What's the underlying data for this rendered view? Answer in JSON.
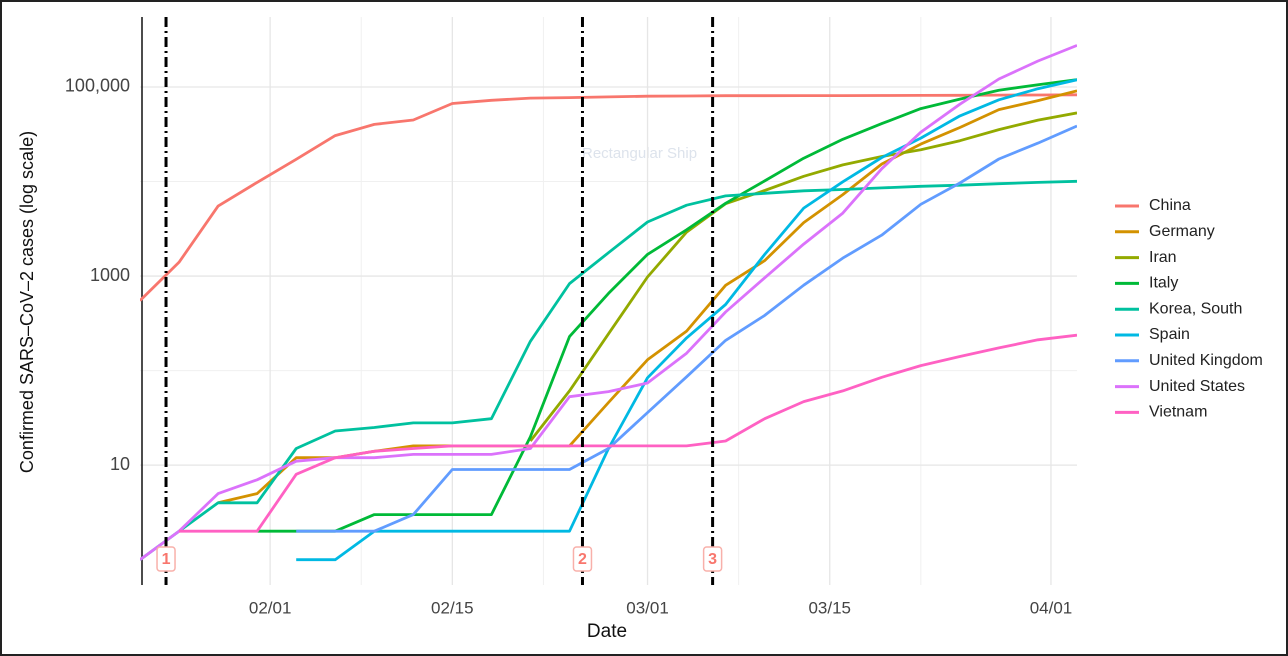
{
  "chart_data": {
    "type": "line",
    "watermark": "Rectangular Ship",
    "xlabel": "Date",
    "ylabel": "Confirmed SARS–CoV–2 cases (log scale)",
    "log_y": true,
    "grid": true,
    "legend": "right",
    "x": [
      "01/22",
      "01/25",
      "01/28",
      "01/31",
      "02/03",
      "02/06",
      "02/09",
      "02/12",
      "02/15",
      "02/18",
      "02/21",
      "02/24",
      "02/27",
      "03/01",
      "03/04",
      "03/07",
      "03/10",
      "03/13",
      "03/16",
      "03/19",
      "03/22",
      "03/25",
      "03/28",
      "03/31",
      "04/03"
    ],
    "xlim": [
      "01/22",
      "04/03"
    ],
    "xticks": [
      "02/01",
      "02/15",
      "03/01",
      "03/15",
      "04/01"
    ],
    "xminor": [
      "02/08",
      "02/22",
      "03/08",
      "03/22"
    ],
    "ylim": [
      0.54,
      550000
    ],
    "yticks": [
      10,
      1000,
      {
        "value": 100000,
        "label": "100,000"
      }
    ],
    "yminor": [
      100,
      10000
    ],
    "markers": [
      {
        "x": "01/24",
        "label": "1"
      },
      {
        "x": "02/25",
        "label": "2"
      },
      {
        "x": "03/06",
        "label": "3"
      }
    ],
    "series": [
      {
        "name": "China",
        "color": "#F8766D",
        "values": [
          550,
          1400,
          5500,
          9800,
          17200,
          30600,
          40200,
          44800,
          66900,
          72400,
          76300,
          77200,
          78600,
          79900,
          80400,
          80800,
          80900,
          81000,
          81100,
          81300,
          81400,
          81700,
          82000,
          82300,
          82600
        ]
      },
      {
        "name": "Germany",
        "color": "#D39200",
        "values": [
          null,
          null,
          4,
          5,
          12,
          12,
          14,
          16,
          16,
          16,
          16,
          16,
          46,
          130,
          262,
          799,
          1457,
          3675,
          7272,
          15320,
          24873,
          37323,
          57695,
          71808,
          91159
        ]
      },
      {
        "name": "Iran",
        "color": "#93AA00",
        "values": [
          null,
          null,
          null,
          null,
          null,
          null,
          null,
          null,
          null,
          null,
          18,
          61,
          245,
          978,
          2922,
          5823,
          8042,
          11364,
          14991,
          18407,
          21638,
          27017,
          35408,
          44605,
          53183
        ]
      },
      {
        "name": "Italy",
        "color": "#00BA38",
        "values": [
          null,
          null,
          null,
          2,
          2,
          2,
          3,
          3,
          3,
          3,
          20,
          229,
          655,
          1694,
          3089,
          5883,
          10149,
          17660,
          27980,
          41035,
          59138,
          74386,
          92472,
          105792,
          119827
        ]
      },
      {
        "name": "Korea, South",
        "color": "#00C19F",
        "values": [
          1,
          2,
          4,
          4,
          15,
          23,
          25,
          28,
          28,
          31,
          204,
          833,
          1766,
          3736,
          5621,
          7041,
          7513,
          7979,
          8236,
          8565,
          8897,
          9137,
          9478,
          9786,
          10062
        ]
      },
      {
        "name": "Spain",
        "color": "#00B9E3",
        "values": [
          null,
          null,
          null,
          null,
          1,
          1,
          2,
          2,
          2,
          2,
          2,
          2,
          15,
          84,
          222,
          500,
          1695,
          5232,
          9942,
          17963,
          28768,
          49515,
          73235,
          95923,
          119199
        ]
      },
      {
        "name": "United Kingdom",
        "color": "#619CFF",
        "values": [
          null,
          null,
          null,
          null,
          2,
          2,
          2,
          3,
          9,
          9,
          9,
          9,
          15,
          36,
          86,
          209,
          384,
          801,
          1551,
          2716,
          5741,
          9640,
          17312,
          25481,
          38689
        ]
      },
      {
        "name": "United States",
        "color": "#DB72FB",
        "values": [
          1,
          2,
          5,
          7,
          11,
          12,
          12,
          13,
          13,
          13,
          15,
          53,
          60,
          74,
          153,
          417,
          959,
          2179,
          4632,
          13677,
          33276,
          65778,
          121478,
          188172,
          275586
        ]
      },
      {
        "name": "Vietnam",
        "color": "#FF61C3",
        "values": [
          null,
          2,
          2,
          2,
          8,
          12,
          14,
          15,
          16,
          16,
          16,
          16,
          16,
          16,
          16,
          18,
          31,
          47,
          61,
          85,
          113,
          141,
          174,
          212,
          237
        ]
      }
    ]
  }
}
